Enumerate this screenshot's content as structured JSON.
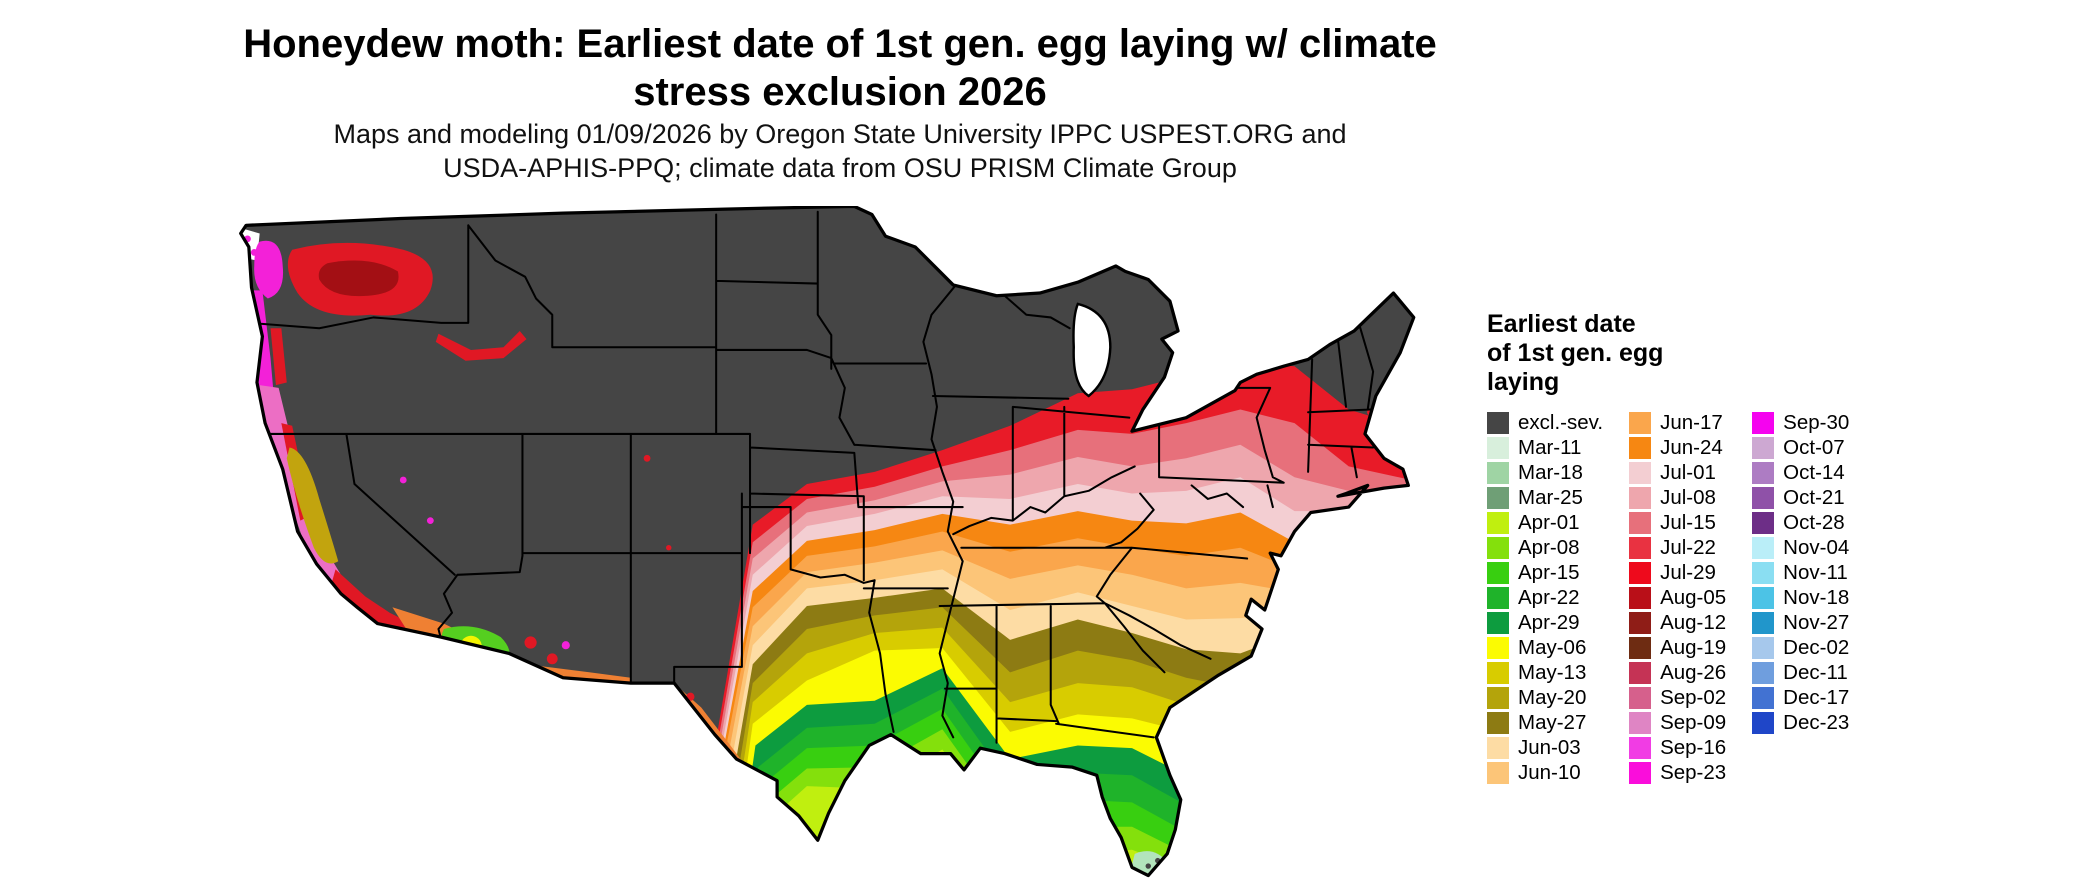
{
  "title_lines": [
    "Honeydew moth: Earliest date of 1st gen. egg laying w/ climate",
    "stress exclusion 2026"
  ],
  "subtitle_lines": [
    "Maps and modeling 01/09/2026 by Oregon State University IPPC USPEST.ORG and",
    "USDA-APHIS-PPQ; climate data from OSU PRISM Climate Group"
  ],
  "legend": {
    "title_lines": [
      "Earliest date",
      "of 1st gen. egg",
      "laying"
    ],
    "columns": [
      {
        "entries": [
          {
            "label": "excl.-sev.",
            "color": "#454545"
          },
          {
            "label": "Mar-11",
            "color": "#d8efdc"
          },
          {
            "label": "Mar-18",
            "color": "#9fd4a4"
          },
          {
            "label": "Mar-25",
            "color": "#6f9f76"
          },
          {
            "label": "Apr-01",
            "color": "#c0ef0f"
          },
          {
            "label": "Apr-08",
            "color": "#84e00c"
          },
          {
            "label": "Apr-15",
            "color": "#38cf10"
          },
          {
            "label": "Apr-22",
            "color": "#1fb32a"
          },
          {
            "label": "Apr-29",
            "color": "#0d9c3f"
          },
          {
            "label": "May-06",
            "color": "#fbfb02"
          },
          {
            "label": "May-13",
            "color": "#d8cc00"
          },
          {
            "label": "May-20",
            "color": "#b4a40b"
          },
          {
            "label": "May-27",
            "color": "#8d7b13"
          },
          {
            "label": "Jun-03",
            "color": "#fddca4"
          },
          {
            "label": "Jun-10",
            "color": "#fcc578"
          }
        ]
      },
      {
        "entries": [
          {
            "label": "Jun-17",
            "color": "#faa64c"
          },
          {
            "label": "Jun-24",
            "color": "#f68712"
          },
          {
            "label": "Jul-01",
            "color": "#f3ced2"
          },
          {
            "label": "Jul-08",
            "color": "#eea6ad"
          },
          {
            "label": "Jul-15",
            "color": "#e7707b"
          },
          {
            "label": "Jul-22",
            "color": "#e93241"
          },
          {
            "label": "Jul-29",
            "color": "#ee0a1c"
          },
          {
            "label": "Aug-05",
            "color": "#b90f18"
          },
          {
            "label": "Aug-12",
            "color": "#8f1d17"
          },
          {
            "label": "Aug-19",
            "color": "#6e2c12"
          },
          {
            "label": "Aug-26",
            "color": "#c53355"
          },
          {
            "label": "Sep-02",
            "color": "#d6608c"
          },
          {
            "label": "Sep-09",
            "color": "#df85c4"
          },
          {
            "label": "Sep-16",
            "color": "#f13ce4"
          },
          {
            "label": "Sep-23",
            "color": "#fa0ddb"
          }
        ]
      },
      {
        "entries": [
          {
            "label": "Sep-30",
            "color": "#f503ef"
          },
          {
            "label": "Oct-07",
            "color": "#cda8d2"
          },
          {
            "label": "Oct-14",
            "color": "#ad7cc3"
          },
          {
            "label": "Oct-21",
            "color": "#8f51a8"
          },
          {
            "label": "Oct-28",
            "color": "#6d2e87"
          },
          {
            "label": "Nov-04",
            "color": "#baeef8"
          },
          {
            "label": "Nov-11",
            "color": "#8adef2"
          },
          {
            "label": "Nov-18",
            "color": "#4cc3e6"
          },
          {
            "label": "Nov-27",
            "color": "#2196cb"
          },
          {
            "label": "Dec-02",
            "color": "#a6c8ec"
          },
          {
            "label": "Dec-11",
            "color": "#6f9ede"
          },
          {
            "label": "Dec-17",
            "color": "#4272d2"
          },
          {
            "label": "Dec-23",
            "color": "#1f46c8"
          }
        ]
      }
    ]
  },
  "map": {
    "band_colors": {
      "excl": "#454545",
      "red": "#e81b28",
      "jul15": "#e7707b",
      "jul08": "#eea6ad",
      "jul01": "#f3ced2",
      "jun24": "#f68712",
      "jun17": "#faa64c",
      "jun10": "#fcc578",
      "jun03": "#fddca4",
      "may27": "#8d7b13",
      "may20": "#b4a40b",
      "may13": "#d8cc00",
      "may06": "#fbfb02",
      "apr29": "#0d9c3f",
      "apr22": "#1fb32a",
      "apr15": "#38cf10",
      "apr08": "#84e00c",
      "apr01": "#c0ef0f",
      "magenta": "#f321d8",
      "orchid": "#ec6ec4",
      "dark_red": "#a30f14",
      "red_spot": "#e01824",
      "olive_valley": "#c2a40e",
      "green_sw": "#55cf20",
      "yellow_spot": "#f4f400",
      "orange_sw": "#ef8033",
      "seafoam": "#b2e4bc"
    }
  }
}
